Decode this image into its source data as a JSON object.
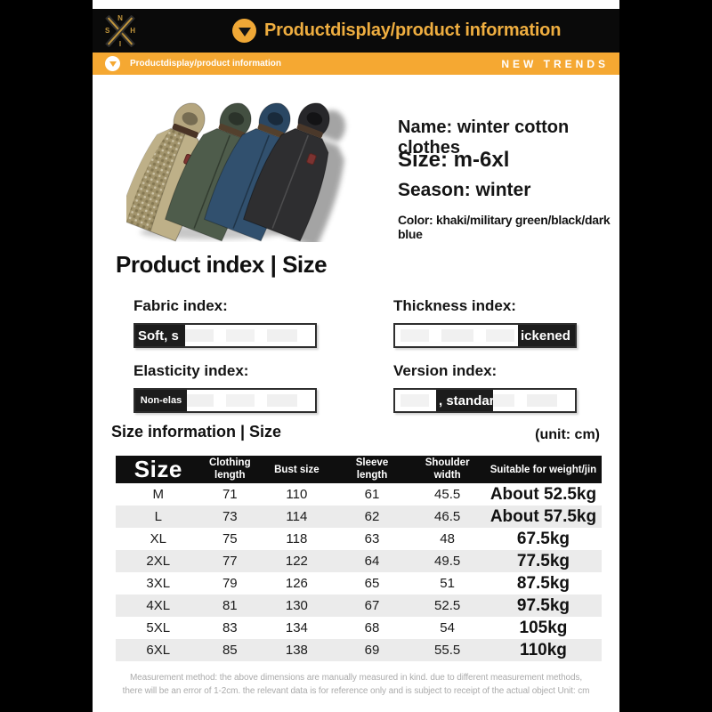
{
  "header": {
    "logo_letters": {
      "top": "N",
      "left": "S",
      "right": "H",
      "bottom": "I"
    },
    "title": "Productdisplay/product information",
    "accent_color": "#F0A836"
  },
  "subheader": {
    "label": "Productdisplay/product information",
    "right_label": "NEW TRENDS",
    "bg_color": "#F5A832"
  },
  "product": {
    "name_line": "Name: winter cotton clothes",
    "size_line": "Size: m-6xl",
    "season_line": "Season: winter",
    "color_line": "Color: khaki/military green/black/dark blue",
    "badge_color": "#7c3331",
    "jackets": [
      {
        "name": "khaki",
        "outer": "#beb088",
        "hood": "#b5a67f",
        "lining": "#a2946c"
      },
      {
        "name": "military-green",
        "outer": "#4e5c4b",
        "hood": "#434f41",
        "lining": "#39463a"
      },
      {
        "name": "dark-blue",
        "outer": "#31506e",
        "hood": "#2a4763",
        "lining": "#253d56"
      },
      {
        "name": "black",
        "outer": "#2e2e30",
        "hood": "#27272a",
        "lining": "#202023"
      }
    ],
    "shadow_color": "#9b9b9b"
  },
  "index_section": {
    "title": "Product index | Size",
    "items": [
      {
        "label": "Fabric index:",
        "chip": "Soft, s"
      },
      {
        "label": "Thickness index:",
        "chip": "ickened"
      },
      {
        "label": "Elasticity index:",
        "chip": "Non-elas"
      },
      {
        "label": "Version index:",
        "chip": ", standar"
      }
    ]
  },
  "size_section": {
    "title": "Size information | Size",
    "unit": "(unit: cm)",
    "table": {
      "header_bg": "#0F0F0F",
      "alt_row_bg": "#EBEBEB",
      "headers": [
        "Size",
        "Clothing length",
        "Bust size",
        "Sleeve length",
        "Shoulder width",
        "Suitable for weight/jin"
      ],
      "rows": [
        [
          "M",
          "71",
          "110",
          "61",
          "45.5",
          "About 52.5kg"
        ],
        [
          "L",
          "73",
          "114",
          "62",
          "46.5",
          "About 57.5kg"
        ],
        [
          "XL",
          "75",
          "118",
          "63",
          "48",
          "67.5kg"
        ],
        [
          "2XL",
          "77",
          "122",
          "64",
          "49.5",
          "77.5kg"
        ],
        [
          "3XL",
          "79",
          "126",
          "65",
          "51",
          "87.5kg"
        ],
        [
          "4XL",
          "81",
          "130",
          "67",
          "52.5",
          "97.5kg"
        ],
        [
          "5XL",
          "83",
          "134",
          "68",
          "54",
          "105kg"
        ],
        [
          "6XL",
          "85",
          "138",
          "69",
          "55.5",
          "110kg"
        ]
      ]
    }
  },
  "footer": {
    "line1": "Measurement method: the above dimensions are manually measured in kind. due to different measurement methods,",
    "line2": "there will be an error of 1-2cm. the relevant data is for reference only and is subject to receipt of the actual object Unit: cm"
  }
}
